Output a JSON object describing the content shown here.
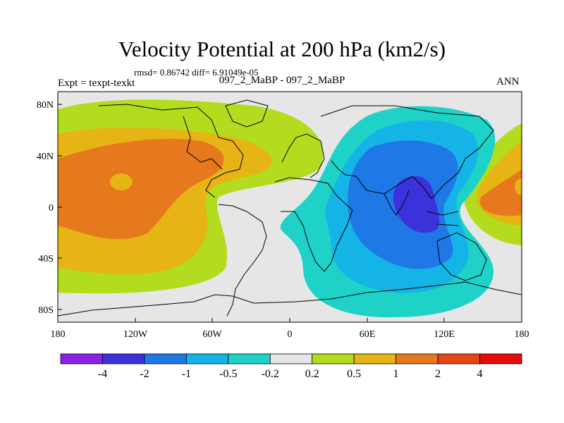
{
  "header": {
    "title": "Velocity Potential at 200 hPa (km2/s)",
    "stats": "rmsd= 0.86742  diff= 6.91049e-05",
    "left_label": "Expt = texpt-texkt",
    "center_label": "097_2_MaBP - 097_2_MaBP",
    "right_label": "ANN"
  },
  "chart_data": {
    "type": "heatmap",
    "title": "Velocity Potential at 200 hPa (km2/s)",
    "x_tick_labels": [
      "180",
      "120W",
      "60W",
      "0",
      "60E",
      "120E",
      "180"
    ],
    "y_tick_labels": [
      "80N",
      "40N",
      "0",
      "40S",
      "80S"
    ],
    "x_range_deg": [
      -180,
      180
    ],
    "y_range_deg": [
      -90,
      90
    ],
    "colorbar": {
      "labels": [
        "-4",
        "-2",
        "-1",
        "-0.5",
        "-0.2",
        "0.2",
        "0.5",
        "1",
        "2",
        "4"
      ],
      "colors": [
        "#8c1ee6",
        "#3b32dc",
        "#1e78e6",
        "#14b4e6",
        "#1ed2c8",
        "#e6e6e6",
        "#b4dc1e",
        "#e6b414",
        "#e6781e",
        "#e64614",
        "#e60a0a"
      ]
    },
    "colors": {
      "background_field": "#e6e6e6",
      "continent_outline": "#000000"
    }
  }
}
